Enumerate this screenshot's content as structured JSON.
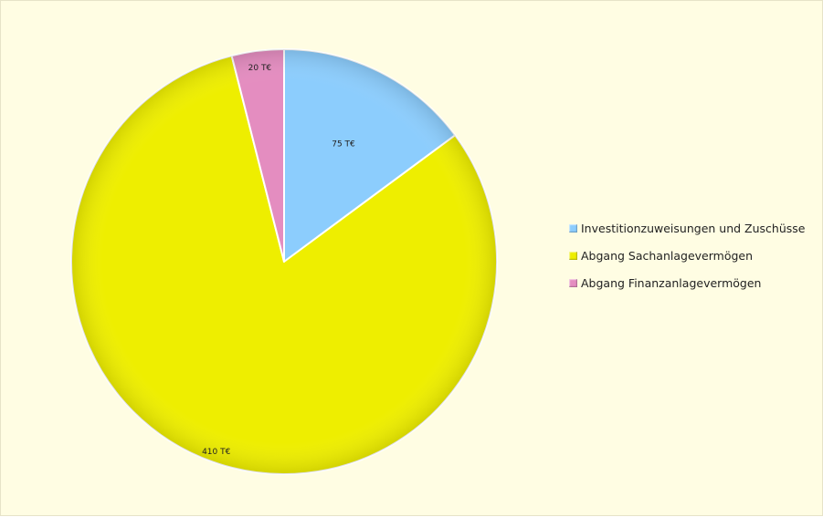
{
  "chart_data": {
    "type": "pie",
    "title": "",
    "categories": [
      "Investitionzuweisungen und Zuschüsse",
      "Abgang Sachanlagevermögen",
      "Abgang Finanzanlagevermögen"
    ],
    "values": [
      75,
      410,
      20
    ],
    "data_labels": [
      "75 T€",
      "410 T€",
      "20 T€"
    ],
    "colors": [
      "#8ccdfd",
      "#eeee00",
      "#e48dc0"
    ],
    "legend_position": "right",
    "start_angle": "top, clockwise"
  },
  "background_color": "#fffde3"
}
